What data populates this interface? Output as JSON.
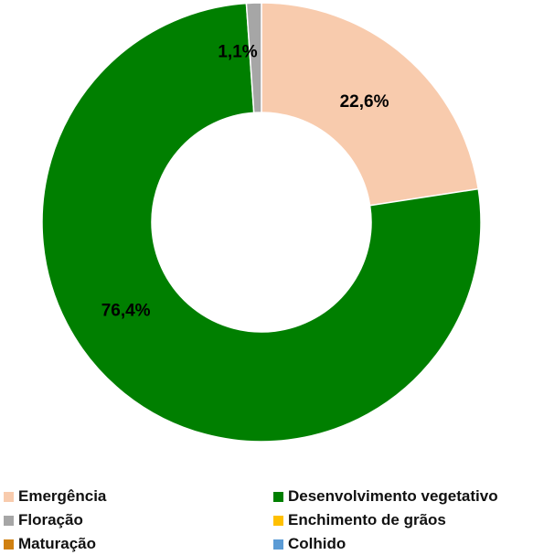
{
  "chart_data": {
    "type": "pie",
    "variant": "donut",
    "title": "",
    "slices": [
      {
        "name": "Emergência",
        "value": 22.6,
        "label": "22,6%",
        "color": "#f8cbad"
      },
      {
        "name": "Desenvolvimento vegetativo",
        "value": 76.4,
        "label": "76,4%",
        "color": "#007f00"
      },
      {
        "name": "Floração",
        "value": 1.1,
        "label": "1,1%",
        "color": "#a6a6a6"
      },
      {
        "name": "Enchimento de grãos",
        "value": 0,
        "label": "",
        "color": "#ffc000"
      },
      {
        "name": "Maturação",
        "value": 0,
        "label": "",
        "color": "#d08010"
      },
      {
        "name": "Colhido",
        "value": 0,
        "label": "",
        "color": "#5b9bd5"
      }
    ],
    "legend": {
      "position": "bottom",
      "items": [
        {
          "name": "Emergência",
          "color": "#f8cbad"
        },
        {
          "name": "Desenvolvimento vegetativo",
          "color": "#007f00"
        },
        {
          "name": "Floração",
          "color": "#a6a6a6"
        },
        {
          "name": "Enchimento de grãos",
          "color": "#ffc000"
        },
        {
          "name": "Maturação",
          "color": "#d08010"
        },
        {
          "name": "Colhido",
          "color": "#5b9bd5"
        }
      ]
    }
  }
}
